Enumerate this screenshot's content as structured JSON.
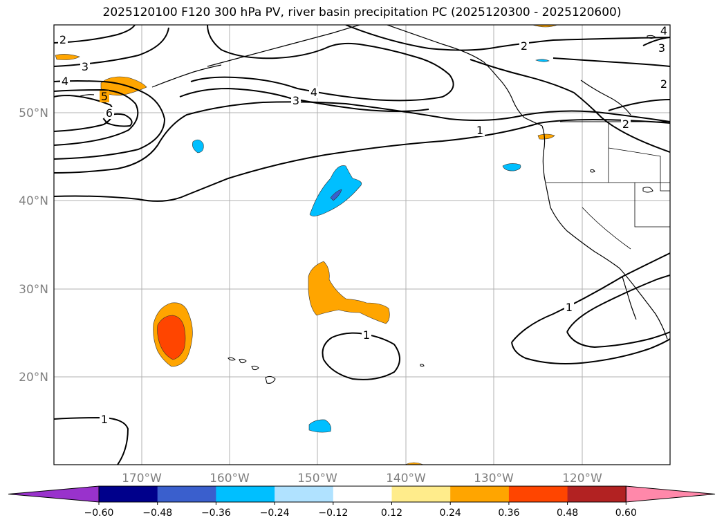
{
  "title": "2025120100 F120 300 hPa PV, river basin precipitation PC (2025120300 - 2025120600)",
  "map": {
    "lon_range": [
      -180,
      -110
    ],
    "lat_range": [
      10,
      60
    ],
    "lat_labels": [
      "50°N",
      "40°N",
      "30°N",
      "20°N"
    ],
    "lon_labels": [
      "170°W",
      "160°W",
      "150°W",
      "140°W",
      "130°W",
      "120°W"
    ],
    "contour_labels": [
      "2",
      "3",
      "4",
      "5",
      "6",
      "3",
      "4",
      "1",
      "2",
      "4",
      "3",
      "2",
      "2",
      "1",
      "1",
      "1"
    ]
  },
  "colorbar": {
    "tick_labels": [
      "−0.60",
      "−0.48",
      "−0.36",
      "−0.24",
      "−0.12",
      "0.12",
      "0.24",
      "0.36",
      "0.48",
      "0.60"
    ],
    "colors": [
      "#9932cc",
      "#00008b",
      "#3a5fcd",
      "#00bfff",
      "#b0e2ff",
      "#ffffff",
      "#ffec8b",
      "#ffa500",
      "#ff4500",
      "#b22222",
      "#ff88aa"
    ]
  }
}
